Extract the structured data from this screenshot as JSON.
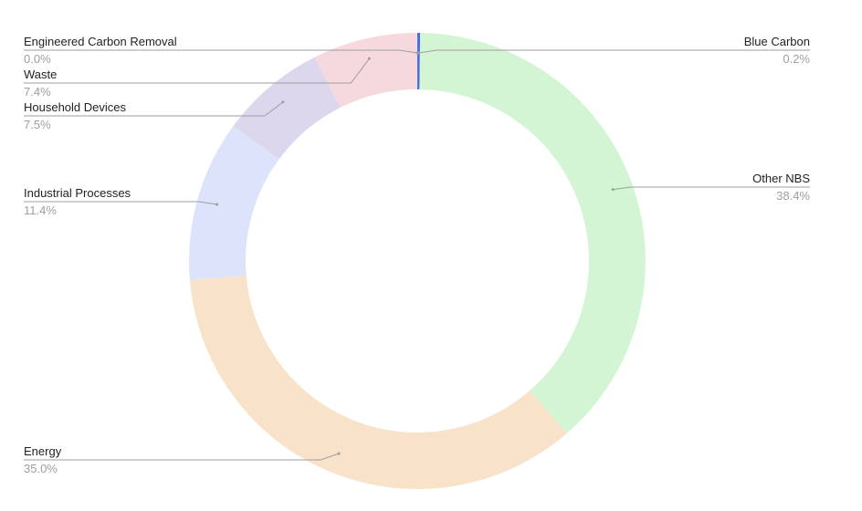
{
  "chart_data": {
    "type": "pie",
    "donut": true,
    "legend": "none",
    "slices": [
      {
        "label": "Blue Carbon",
        "value": 0.2,
        "value_label": "0.2%",
        "color": "#4a6fe3"
      },
      {
        "label": "Other NBS",
        "value": 38.4,
        "value_label": "38.4%",
        "color": "#d4f5d4"
      },
      {
        "label": "Energy",
        "value": 35.0,
        "value_label": "35.0%",
        "color": "#f8e3ca"
      },
      {
        "label": "Industrial Processes",
        "value": 11.4,
        "value_label": "11.4%",
        "color": "#dde3fa"
      },
      {
        "label": "Household Devices",
        "value": 7.5,
        "value_label": "7.5%",
        "color": "#ddd7ee"
      },
      {
        "label": "Waste",
        "value": 7.4,
        "value_label": "7.4%",
        "color": "#f5d9dd"
      },
      {
        "label": "Engineered Carbon Removal",
        "value": 0.0,
        "value_label": "0.0%",
        "color": "#f2c4c4"
      }
    ]
  }
}
